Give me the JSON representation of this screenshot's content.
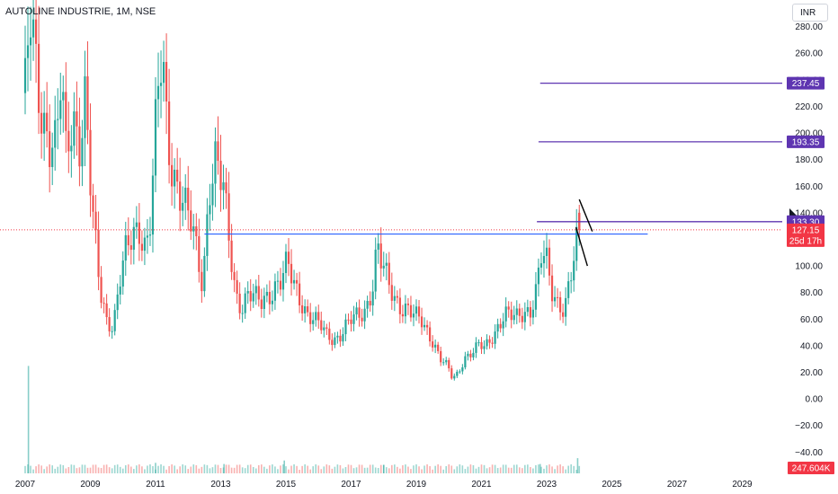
{
  "header": {
    "title": "AUTOLINE INDUSTRIE, 1M, NSE",
    "currency": "INR"
  },
  "colors": {
    "up": "#26a69a",
    "down": "#ef5350",
    "level_line": "#5e35b1",
    "support_line": "#2962ff",
    "last_price": "#f23645",
    "volume_badge": "#f23645",
    "trend_line": "#000000"
  },
  "chart_data": {
    "type": "candlestick",
    "x_range": [
      2007.0,
      2031.0
    ],
    "y_range": [
      -58,
      300
    ],
    "x_tick_labels": [
      "2007",
      "2009",
      "2011",
      "2013",
      "2015",
      "2017",
      "2019",
      "2021",
      "2023",
      "2025",
      "2027",
      "2029"
    ],
    "x_tick_years": [
      2007,
      2009,
      2011,
      2013,
      2015,
      2017,
      2019,
      2021,
      2023,
      2025,
      2027,
      2029
    ],
    "y_tick_values": [
      280,
      260,
      240,
      220,
      200,
      180,
      160,
      140,
      120,
      100,
      80,
      60,
      40,
      20,
      0,
      -20,
      -40
    ],
    "y_tick_labels": [
      "280.00",
      "260.00",
      "240.00",
      "220.00",
      "200.00",
      "180.00",
      "160.00",
      "140.00",
      "120.00",
      "100.00",
      "80.00",
      "60.00",
      "40.00",
      "20.00",
      "0.00",
      "−20.00",
      "−40.00"
    ],
    "price_path": [
      [
        2007.0,
        230
      ],
      [
        2007.15,
        285
      ],
      [
        2007.35,
        240
      ],
      [
        2007.55,
        210
      ],
      [
        2007.75,
        200
      ],
      [
        2007.95,
        190
      ],
      [
        2008.1,
        240
      ],
      [
        2008.25,
        180
      ],
      [
        2008.45,
        210
      ],
      [
        2008.7,
        200
      ],
      [
        2008.85,
        230
      ],
      [
        2009.05,
        140
      ],
      [
        2009.3,
        80
      ],
      [
        2009.5,
        60
      ],
      [
        2009.7,
        55
      ],
      [
        2009.9,
        90
      ],
      [
        2010.1,
        110
      ],
      [
        2010.3,
        120
      ],
      [
        2010.5,
        130
      ],
      [
        2010.7,
        115
      ],
      [
        2010.85,
        140
      ],
      [
        2011.05,
        220
      ],
      [
        2011.2,
        255
      ],
      [
        2011.35,
        200
      ],
      [
        2011.55,
        170
      ],
      [
        2011.75,
        160
      ],
      [
        2011.95,
        140
      ],
      [
        2012.1,
        130
      ],
      [
        2012.25,
        110
      ],
      [
        2012.45,
        85
      ],
      [
        2012.65,
        165
      ],
      [
        2012.85,
        180
      ],
      [
        2013.05,
        160
      ],
      [
        2013.25,
        120
      ],
      [
        2013.45,
        80
      ],
      [
        2013.65,
        70
      ],
      [
        2013.85,
        80
      ],
      [
        2014.05,
        75
      ],
      [
        2014.25,
        72
      ],
      [
        2014.45,
        78
      ],
      [
        2014.65,
        85
      ],
      [
        2014.85,
        90
      ],
      [
        2015.05,
        100
      ],
      [
        2015.25,
        85
      ],
      [
        2015.45,
        75
      ],
      [
        2015.65,
        65
      ],
      [
        2015.85,
        60
      ],
      [
        2016.05,
        55
      ],
      [
        2016.25,
        48
      ],
      [
        2016.45,
        45
      ],
      [
        2016.65,
        48
      ],
      [
        2016.85,
        55
      ],
      [
        2017.05,
        60
      ],
      [
        2017.25,
        62
      ],
      [
        2017.45,
        68
      ],
      [
        2017.65,
        85
      ],
      [
        2017.8,
        115
      ],
      [
        2017.95,
        100
      ],
      [
        2018.15,
        85
      ],
      [
        2018.35,
        75
      ],
      [
        2018.55,
        70
      ],
      [
        2018.75,
        68
      ],
      [
        2018.95,
        62
      ],
      [
        2019.15,
        58
      ],
      [
        2019.35,
        50
      ],
      [
        2019.55,
        42
      ],
      [
        2019.75,
        30
      ],
      [
        2019.95,
        25
      ],
      [
        2020.1,
        15
      ],
      [
        2020.3,
        20
      ],
      [
        2020.5,
        32
      ],
      [
        2020.7,
        35
      ],
      [
        2020.9,
        40
      ],
      [
        2021.1,
        38
      ],
      [
        2021.3,
        45
      ],
      [
        2021.5,
        55
      ],
      [
        2021.7,
        65
      ],
      [
        2021.9,
        62
      ],
      [
        2022.1,
        60
      ],
      [
        2022.3,
        65
      ],
      [
        2022.5,
        68
      ],
      [
        2022.7,
        85
      ],
      [
        2022.85,
        110
      ],
      [
        2023.0,
        100
      ],
      [
        2023.15,
        80
      ],
      [
        2023.35,
        72
      ],
      [
        2023.55,
        70
      ],
      [
        2023.75,
        95
      ],
      [
        2023.9,
        112
      ],
      [
        2024.0,
        125
      ]
    ],
    "last_candle": {
      "year": 2024.0,
      "open": 140,
      "high": 146,
      "low": 120,
      "close": 127.15,
      "direction": "down"
    },
    "volume_spikes": [
      {
        "year": 2007.1,
        "value": 0.92
      },
      {
        "year": 2011.0,
        "value": 0.09
      },
      {
        "year": 2013.1,
        "value": 0.08
      },
      {
        "year": 2014.95,
        "value": 0.11
      },
      {
        "year": 2018.0,
        "value": 0.07
      },
      {
        "year": 2022.8,
        "value": 0.08
      },
      {
        "year": 2023.95,
        "value": 0.13
      }
    ],
    "horizontal_levels": [
      {
        "price": 237.45,
        "label": "237.45",
        "x_start": 2022.8
      },
      {
        "price": 193.35,
        "label": "193.35",
        "x_start": 2022.75
      },
      {
        "price": 133.3,
        "label": "133.30",
        "x_start": 2022.7
      },
      {
        "price": 124,
        "label": "",
        "x_start": 2012.5,
        "x_end": 2026.1,
        "kind": "support"
      }
    ],
    "trend_lines": [
      {
        "x1": 2024.0,
        "y1": 150,
        "x2": 2024.4,
        "y2": 126
      },
      {
        "x1": 2023.9,
        "y1": 129,
        "x2": 2024.25,
        "y2": 100
      }
    ],
    "last_price": {
      "label": "127.15",
      "countdown": "25d 17h",
      "value": 127.15
    },
    "volume_label": "247.604K"
  }
}
